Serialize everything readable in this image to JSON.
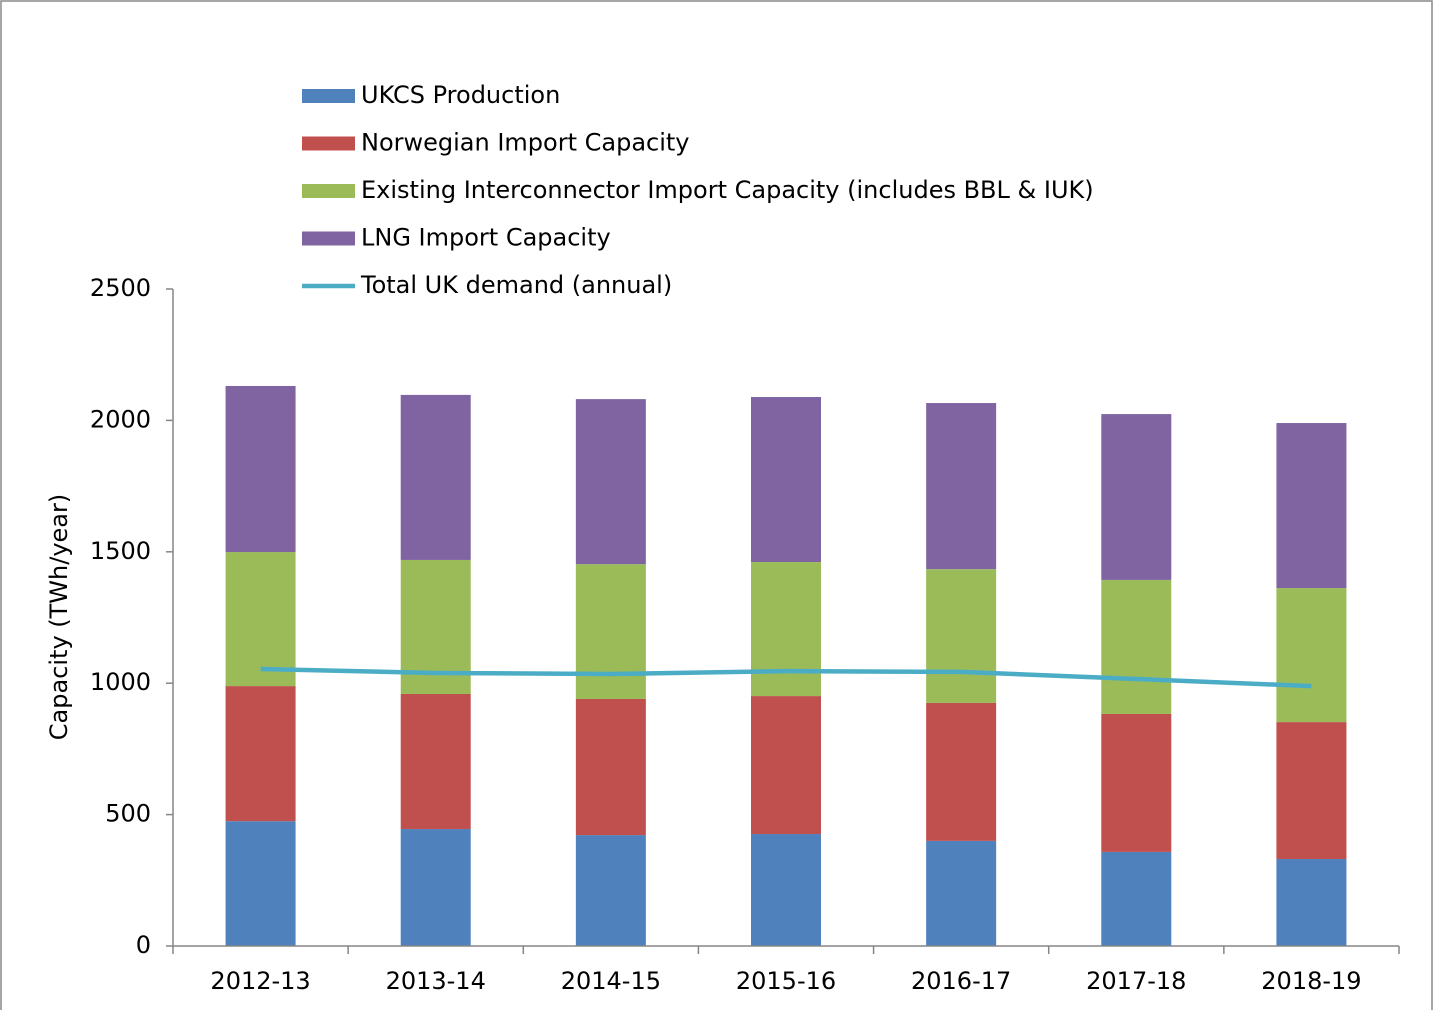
{
  "chart_data": {
    "type": "bar",
    "stacked": true,
    "y_label": "Capacity (TWh/year)",
    "categories": [
      "2012-13",
      "2013-14",
      "2014-15",
      "2015-16",
      "2016-17",
      "2017-18",
      "2018-19"
    ],
    "series": [
      {
        "name": "UKCS Production",
        "color": "#4f81bd",
        "values": [
          475,
          445,
          422,
          426,
          400,
          358,
          331
        ]
      },
      {
        "name": "Norwegian Import Capacity",
        "color": "#c0504d",
        "values": [
          514,
          514,
          518,
          525,
          525,
          525,
          521
        ]
      },
      {
        "name": "Existing Interconnector Import Capacity (includes BBL & IUK)",
        "color": "#9bbb59",
        "values": [
          510,
          510,
          513,
          510,
          509,
          510,
          510
        ]
      },
      {
        "name": "LNG Import Capacity",
        "color": "#8064a2",
        "values": [
          632,
          628,
          628,
          628,
          632,
          631,
          628
        ]
      },
      {
        "name": "Total UK demand (annual)",
        "type": "line",
        "color": "#4bacc6",
        "values": [
          1054,
          1039,
          1035,
          1046,
          1043,
          1016,
          989
        ]
      }
    ],
    "ylim": [
      0,
      2500
    ],
    "yticks": [
      0,
      500,
      1000,
      1500,
      2000,
      2500
    ],
    "grid": false
  }
}
